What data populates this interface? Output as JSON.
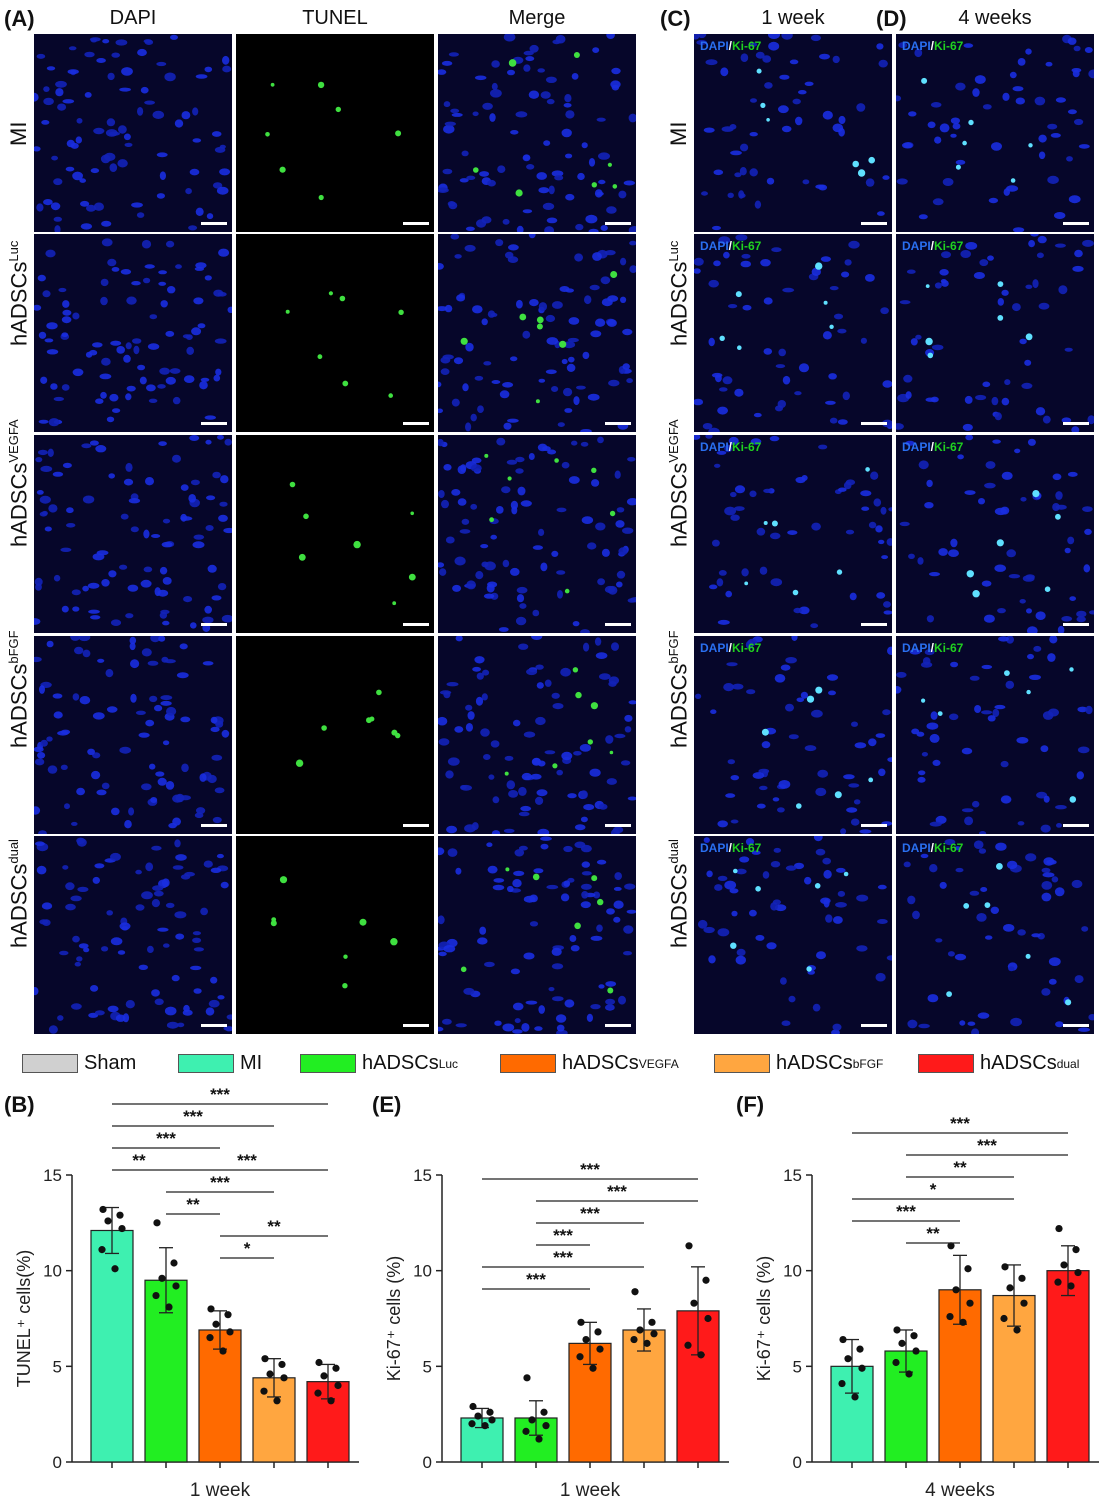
{
  "panels": {
    "a": "(A)",
    "b": "(B)",
    "c": "(C)",
    "d": "(D)",
    "e": "(E)",
    "f": "(F)"
  },
  "column_headers": {
    "dapi": "DAPI",
    "tunel": "TUNEL",
    "merge": "Merge",
    "week1": "1 week",
    "week4": "4 weeks"
  },
  "rows": [
    {
      "base": "MI",
      "sup": ""
    },
    {
      "base": "hADSCs",
      "sup": "Luc"
    },
    {
      "base": "hADSCs",
      "sup": "VEGFA"
    },
    {
      "base": "hADSCs",
      "sup": "bFGF"
    },
    {
      "base": "hADSCs",
      "sup": "dual"
    }
  ],
  "stain_label": {
    "dapi": "DAPI",
    "slash": "/",
    "ki67": "Ki-67"
  },
  "legend": [
    {
      "base": "Sham",
      "sup": "",
      "color": "#d0d0d0"
    },
    {
      "base": "MI",
      "sup": "",
      "color": "#3ef0b0"
    },
    {
      "base": "hADSCs",
      "sup": "Luc",
      "color": "#22ee22"
    },
    {
      "base": "hADSCs",
      "sup": "VEGFA",
      "color": "#ff6a00"
    },
    {
      "base": "hADSCs",
      "sup": "bFGF",
      "color": "#ffa640"
    },
    {
      "base": "hADSCs",
      "sup": "dual",
      "color": "#ff1a1a"
    }
  ],
  "chart_data": [
    {
      "panel": "(B)",
      "type": "bar",
      "ylabel": "TUNEL⁺ cells(%)",
      "xlabel": "1 week",
      "ylim": [
        0,
        15
      ],
      "yticks": [
        "0",
        "5",
        "10",
        "15"
      ],
      "series": [
        {
          "group": "MI",
          "color": "#3ef0b0",
          "value": 12.1,
          "sd": 1.2,
          "points": [
            13.2,
            12.9,
            12.6,
            12.2,
            11.1,
            10.1
          ]
        },
        {
          "group": "hADSCs Luc",
          "color": "#22ee22",
          "value": 9.5,
          "sd": 1.7,
          "points": [
            12.5,
            10.4,
            9.6,
            9.2,
            8.7,
            8.1
          ]
        },
        {
          "group": "hADSCs VEGFA",
          "color": "#ff6a00",
          "value": 6.9,
          "sd": 1.0,
          "points": [
            8.0,
            7.7,
            7.2,
            6.8,
            6.5,
            5.8
          ]
        },
        {
          "group": "hADSCs bFGF",
          "color": "#ffa640",
          "value": 4.4,
          "sd": 1.0,
          "points": [
            5.4,
            5.1,
            4.6,
            4.4,
            3.7,
            3.2
          ]
        },
        {
          "group": "hADSCs dual",
          "color": "#ff1a1a",
          "value": 4.2,
          "sd": 0.9,
          "points": [
            5.2,
            4.9,
            4.5,
            4.0,
            3.6,
            3.2
          ]
        }
      ],
      "sig": [
        {
          "from": 0,
          "to": 4,
          "label": "***"
        },
        {
          "from": 0,
          "to": 3,
          "label": "***"
        },
        {
          "from": 0,
          "to": 2,
          "label": "***"
        },
        {
          "from": 0,
          "to": 1,
          "label": "**"
        },
        {
          "from": 1,
          "to": 4,
          "label": "***"
        },
        {
          "from": 1,
          "to": 3,
          "label": "***"
        },
        {
          "from": 1,
          "to": 2,
          "label": "**"
        },
        {
          "from": 2,
          "to": 4,
          "label": "**"
        },
        {
          "from": 2,
          "to": 3,
          "label": "*"
        }
      ]
    },
    {
      "panel": "(E)",
      "type": "bar",
      "ylabel": "Ki-67⁺ cells (%)",
      "xlabel": "1 week",
      "ylim": [
        0,
        15
      ],
      "yticks": [
        "0",
        "5",
        "10",
        "15"
      ],
      "series": [
        {
          "group": "MI",
          "color": "#3ef0b0",
          "value": 2.3,
          "sd": 0.5,
          "points": [
            2.9,
            2.6,
            2.4,
            2.2,
            2.0,
            1.9
          ]
        },
        {
          "group": "hADSCs Luc",
          "color": "#22ee22",
          "value": 2.3,
          "sd": 0.9,
          "points": [
            4.4,
            2.6,
            2.2,
            1.9,
            1.6,
            1.2
          ]
        },
        {
          "group": "hADSCs VEGFA",
          "color": "#ff6a00",
          "value": 6.2,
          "sd": 1.1,
          "points": [
            7.3,
            6.8,
            6.4,
            5.9,
            5.5,
            4.9
          ]
        },
        {
          "group": "hADSCs bFGF",
          "color": "#ffa640",
          "value": 6.9,
          "sd": 1.1,
          "points": [
            8.9,
            7.3,
            6.9,
            6.7,
            6.4,
            6.2
          ]
        },
        {
          "group": "hADSCs dual",
          "color": "#ff1a1a",
          "value": 7.9,
          "sd": 2.3,
          "points": [
            11.3,
            9.5,
            8.3,
            7.5,
            6.1,
            5.6
          ]
        }
      ],
      "sig": [
        {
          "from": 0,
          "to": 4,
          "label": "***"
        },
        {
          "from": 1,
          "to": 4,
          "label": "***"
        },
        {
          "from": 1,
          "to": 3,
          "label": "***"
        },
        {
          "from": 1,
          "to": 2,
          "label": "***"
        },
        {
          "from": 0,
          "to": 3,
          "label": "***"
        },
        {
          "from": 0,
          "to": 2,
          "label": "***"
        }
      ]
    },
    {
      "panel": "(F)",
      "type": "bar",
      "ylabel": "Ki-67⁺ cells (%)",
      "xlabel": "4 weeks",
      "ylim": [
        0,
        15
      ],
      "yticks": [
        "0",
        "5",
        "10",
        "15"
      ],
      "series": [
        {
          "group": "MI",
          "color": "#3ef0b0",
          "value": 5.0,
          "sd": 1.4,
          "points": [
            6.4,
            5.9,
            5.4,
            4.9,
            4.1,
            3.4
          ]
        },
        {
          "group": "hADSCs Luc",
          "color": "#22ee22",
          "value": 5.8,
          "sd": 1.1,
          "points": [
            6.9,
            6.6,
            6.2,
            5.8,
            5.2,
            4.6
          ]
        },
        {
          "group": "hADSCs VEGFA",
          "color": "#ff6a00",
          "value": 9.0,
          "sd": 1.8,
          "points": [
            11.3,
            10.1,
            9.0,
            8.3,
            7.6,
            7.3
          ]
        },
        {
          "group": "hADSCs bFGF",
          "color": "#ffa640",
          "value": 8.7,
          "sd": 1.6,
          "points": [
            10.2,
            9.6,
            9.1,
            8.3,
            7.5,
            6.9
          ]
        },
        {
          "group": "hADSCs dual",
          "color": "#ff1a1a",
          "value": 10.0,
          "sd": 1.3,
          "points": [
            12.2,
            11.1,
            10.3,
            9.9,
            9.4,
            9.2
          ]
        }
      ],
      "sig": [
        {
          "from": 0,
          "to": 4,
          "label": "***"
        },
        {
          "from": 1,
          "to": 4,
          "label": "***"
        },
        {
          "from": 1,
          "to": 3,
          "label": "**"
        },
        {
          "from": 0,
          "to": 3,
          "label": "*"
        },
        {
          "from": 0,
          "to": 2,
          "label": "***"
        },
        {
          "from": 1,
          "to": 2,
          "label": "**"
        }
      ]
    }
  ]
}
